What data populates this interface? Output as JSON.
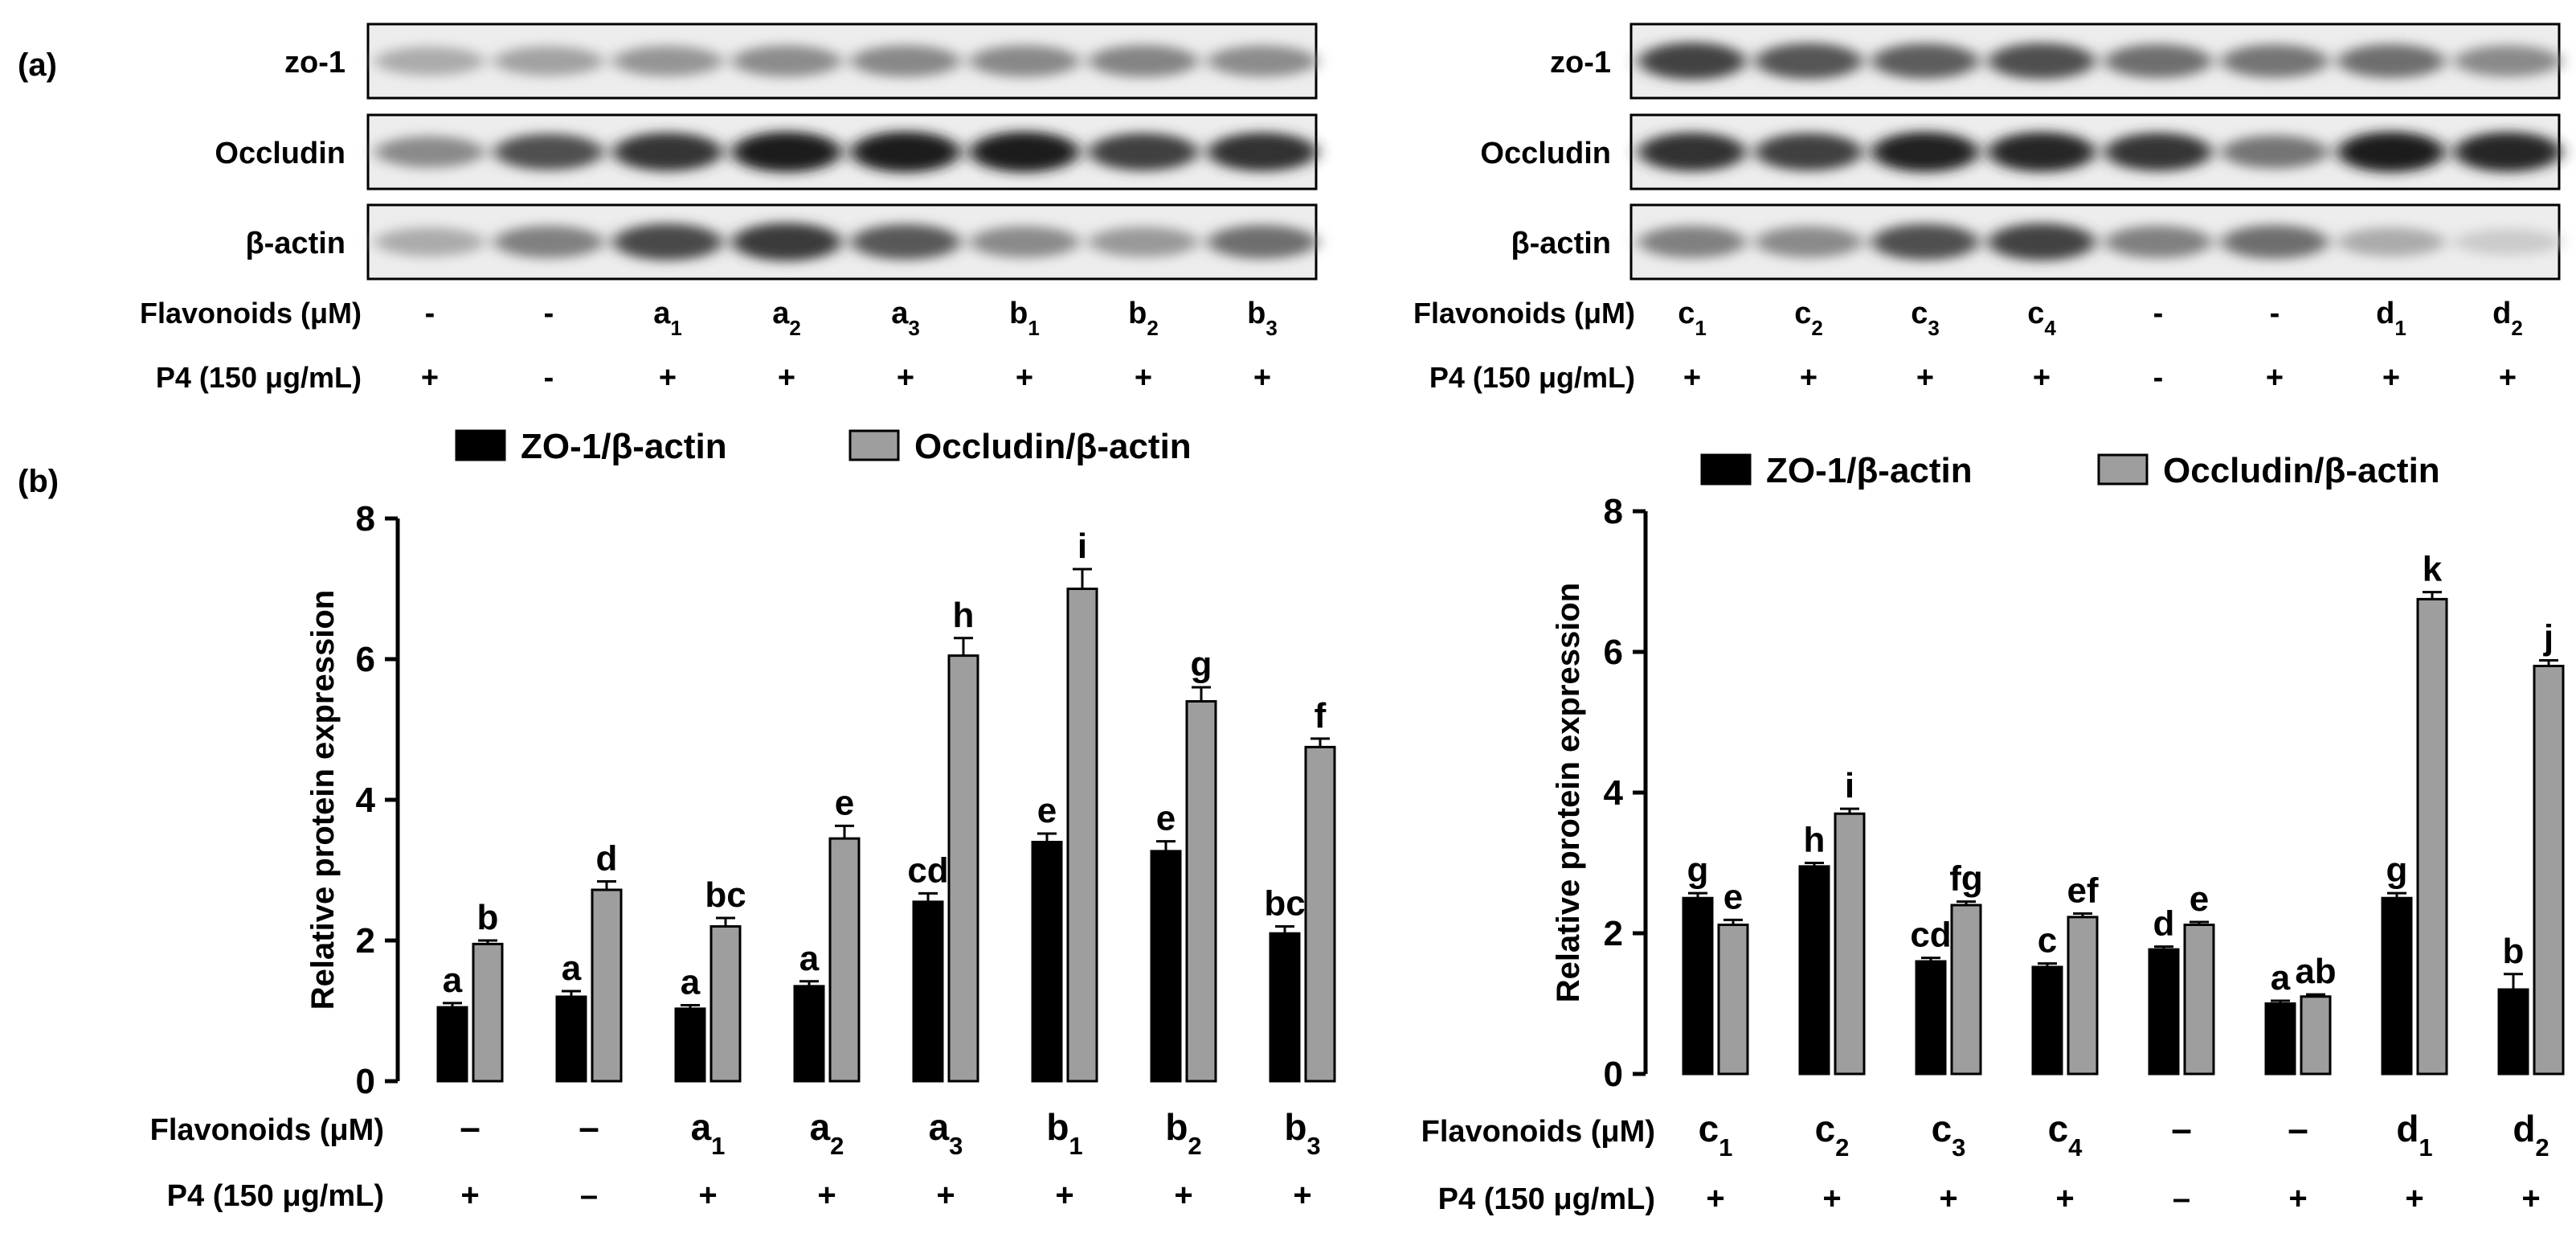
{
  "panel_a": {
    "label": "(a)",
    "left": {
      "bands": [
        "zo-1",
        "Occludin",
        "β-actin"
      ],
      "row_labels": [
        "Flavonoids (μM)",
        "P4 (150 μg/mL)"
      ],
      "flavonoids": [
        [
          "-",
          ""
        ],
        [
          "-",
          ""
        ],
        [
          "a",
          "1"
        ],
        [
          "a",
          "2"
        ],
        [
          "a",
          "3"
        ],
        [
          "b",
          "1"
        ],
        [
          "b",
          "2"
        ],
        [
          "b",
          "3"
        ]
      ],
      "p4": [
        "+",
        "-",
        "+",
        "+",
        "+",
        "+",
        "+",
        "+"
      ],
      "intensity": {
        "zo-1": [
          0.3,
          0.34,
          0.4,
          0.44,
          0.46,
          0.46,
          0.48,
          0.44
        ],
        "Occludin": [
          0.45,
          0.72,
          0.85,
          0.95,
          0.97,
          0.96,
          0.8,
          0.86
        ],
        "β-actin": [
          0.3,
          0.5,
          0.75,
          0.82,
          0.68,
          0.45,
          0.38,
          0.58
        ]
      }
    },
    "right": {
      "bands": [
        "zo-1",
        "Occludin",
        "β-actin"
      ],
      "row_labels": [
        "Flavonoids (μM)",
        "P4 (150 μg/mL)"
      ],
      "flavonoids": [
        [
          "c",
          "1"
        ],
        [
          "c",
          "2"
        ],
        [
          "c",
          "3"
        ],
        [
          "c",
          "4"
        ],
        [
          "-",
          ""
        ],
        [
          "-",
          ""
        ],
        [
          "d",
          "1"
        ],
        [
          "d",
          "2"
        ]
      ],
      "p4": [
        "+",
        "+",
        "+",
        "+",
        "-",
        "+",
        "+",
        "+"
      ],
      "intensity": {
        "zo-1": [
          0.78,
          0.7,
          0.66,
          0.72,
          0.58,
          0.55,
          0.58,
          0.45
        ],
        "Occludin": [
          0.86,
          0.8,
          0.94,
          0.92,
          0.84,
          0.55,
          0.95,
          0.92
        ],
        "β-actin": [
          0.5,
          0.45,
          0.72,
          0.78,
          0.5,
          0.58,
          0.3,
          0.15
        ]
      }
    }
  },
  "panel_b": {
    "label": "(b)"
  },
  "chart_data": [
    {
      "type": "bar",
      "ylabel": "Relative protein expression",
      "ylim": [
        0,
        8
      ],
      "yticks": [
        0,
        2,
        4,
        6,
        8
      ],
      "legend": [
        "ZO-1/β-actin",
        "Occludin/β-actin"
      ],
      "row_labels": [
        "Flavonoids (μM)",
        "P4 (150 μg/mL)"
      ],
      "categories": [
        [
          "–",
          ""
        ],
        [
          "–",
          ""
        ],
        [
          "a",
          "1"
        ],
        [
          "a",
          "2"
        ],
        [
          "a",
          "3"
        ],
        [
          "b",
          "1"
        ],
        [
          "b",
          "2"
        ],
        [
          "b",
          "3"
        ]
      ],
      "p4": [
        "+",
        "–",
        "+",
        "+",
        "+",
        "+",
        "+",
        "+"
      ],
      "series": [
        {
          "name": "ZO-1/β-actin",
          "color": "#000000",
          "values": [
            1.05,
            1.2,
            1.03,
            1.35,
            2.55,
            3.4,
            3.27,
            2.1
          ],
          "errors": [
            0.06,
            0.08,
            0.05,
            0.07,
            0.12,
            0.12,
            0.14,
            0.1
          ],
          "letters": [
            "a",
            "a",
            "a",
            "a",
            "cd",
            "e",
            "e",
            "bc"
          ]
        },
        {
          "name": "Occludin/β-actin",
          "color": "#9e9e9e",
          "values": [
            1.95,
            2.72,
            2.2,
            3.45,
            6.05,
            7.0,
            5.4,
            4.75
          ],
          "errors": [
            0.05,
            0.12,
            0.12,
            0.18,
            0.25,
            0.28,
            0.2,
            0.12
          ],
          "letters": [
            "b",
            "d",
            "bc",
            "e",
            "h",
            "i",
            "g",
            "f"
          ]
        }
      ]
    },
    {
      "type": "bar",
      "ylabel": "Relative protein expression",
      "ylim": [
        0,
        8
      ],
      "yticks": [
        0,
        2,
        4,
        6,
        8
      ],
      "legend": [
        "ZO-1/β-actin",
        "Occludin/β-actin"
      ],
      "row_labels": [
        "Flavonoids (μM)",
        "P4 (150 μg/mL)"
      ],
      "categories": [
        [
          "c",
          "1"
        ],
        [
          "c",
          "2"
        ],
        [
          "c",
          "3"
        ],
        [
          "c",
          "4"
        ],
        [
          "–",
          ""
        ],
        [
          "–",
          ""
        ],
        [
          "d",
          "1"
        ],
        [
          "d",
          "2"
        ]
      ],
      "p4": [
        "+",
        "+",
        "+",
        "+",
        "–",
        "+",
        "+",
        "+"
      ],
      "series": [
        {
          "name": "ZO-1/β-actin",
          "color": "#000000",
          "values": [
            2.5,
            2.95,
            1.6,
            1.52,
            1.77,
            1.0,
            2.5,
            1.2
          ],
          "errors": [
            0.07,
            0.05,
            0.05,
            0.05,
            0.04,
            0.04,
            0.07,
            0.22
          ],
          "letters": [
            "g",
            "h",
            "cd",
            "c",
            "d",
            "a",
            "g",
            "b"
          ]
        },
        {
          "name": "Occludin/β-actin",
          "color": "#9e9e9e",
          "values": [
            2.12,
            3.7,
            2.4,
            2.23,
            2.12,
            1.1,
            6.75,
            5.8
          ],
          "errors": [
            0.07,
            0.07,
            0.05,
            0.05,
            0.04,
            0.03,
            0.1,
            0.08
          ],
          "letters": [
            "e",
            "i",
            "fg",
            "ef",
            "e",
            "ab",
            "k",
            "j"
          ]
        }
      ]
    }
  ]
}
